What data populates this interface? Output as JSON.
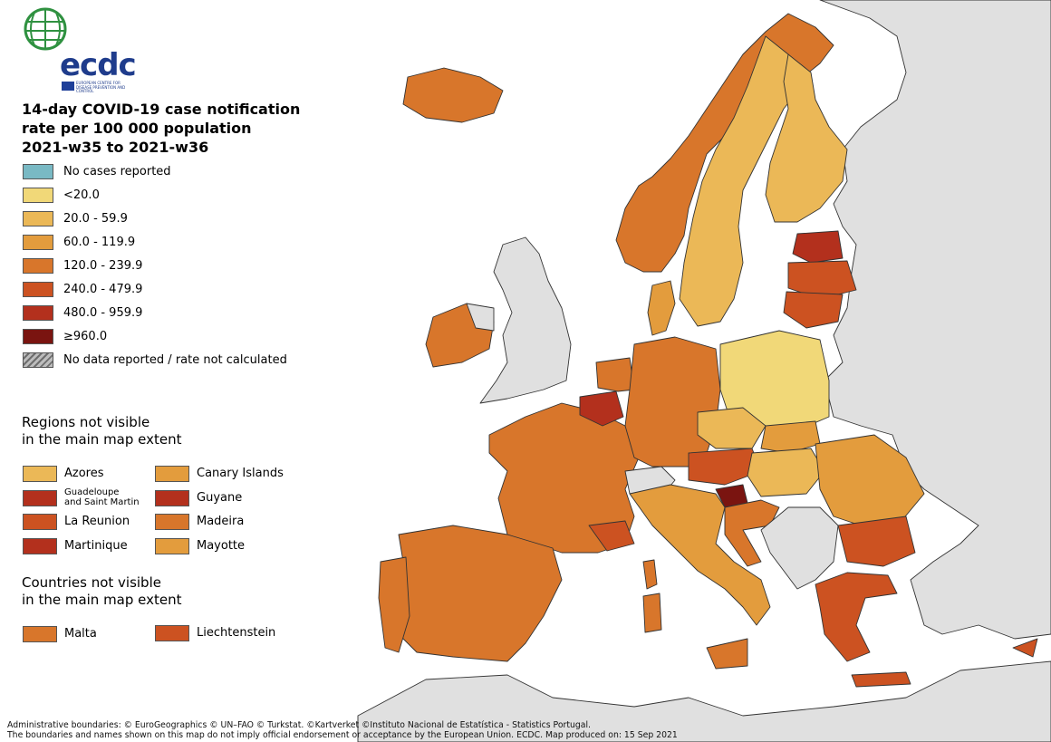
{
  "brand": {
    "logo_text": "ecdc",
    "logo_subtitle": "EUROPEAN CENTRE FOR DISEASE PREVENTION AND CONTROL"
  },
  "title": {
    "line1": "14-day COVID-19 case notification",
    "line2": "rate per 100 000 population",
    "line3": "2021-w35 to 2021-w36"
  },
  "legend": {
    "items": [
      {
        "label": "No cases reported",
        "color": "#79b9c4"
      },
      {
        "label": "<20.0",
        "color": "#f1d878"
      },
      {
        "label": "20.0 - 59.9",
        "color": "#ebb857"
      },
      {
        "label": "60.0 - 119.9",
        "color": "#e39c3d"
      },
      {
        "label": "120.0 - 239.9",
        "color": "#d8762b"
      },
      {
        "label": "240.0 - 479.9",
        "color": "#cc5221"
      },
      {
        "label": "480.0 - 959.9",
        "color": "#b3301d"
      },
      {
        "label": "≥960.0",
        "color": "#7a1410"
      },
      {
        "label": "No data reported / rate not calculated",
        "color": "hatched-grey"
      }
    ]
  },
  "regions_not_visible": {
    "heading_line1": "Regions not visible",
    "heading_line2": "in the main map extent",
    "left": [
      {
        "label": "Azores",
        "color": "#ebb857"
      },
      {
        "label_line1": "Guadeloupe",
        "label_line2": "and Saint Martin",
        "color": "#b3301d"
      },
      {
        "label": "La Reunion",
        "color": "#cc5221"
      },
      {
        "label": "Martinique",
        "color": "#b3301d"
      }
    ],
    "right": [
      {
        "label": "Canary Islands",
        "color": "#e39c3d"
      },
      {
        "label": "Guyane",
        "color": "#b3301d"
      },
      {
        "label": "Madeira",
        "color": "#d8762b"
      },
      {
        "label": "Mayotte",
        "color": "#e39c3d"
      }
    ]
  },
  "countries_not_visible": {
    "heading_line1": "Countries not visible",
    "heading_line2": "in the main map extent",
    "items": [
      {
        "label": "Malta",
        "color": "#d8762b"
      },
      {
        "label": "Liechtenstein",
        "color": "#cc5221"
      }
    ]
  },
  "footer": {
    "line1": "Administrative boundaries: © EuroGeographics © UN–FAO © Turkstat. ©Kartverket ©Instituto Nacional de Estatística - Statistics Portugal.",
    "line2": "The boundaries and names shown on this map do not imply official endorsement or acceptance by the European Union. ECDC. Map produced on: 15 Sep 2021"
  },
  "map_colors": {
    "non_eu": "#e0e0e0",
    "sea": "#ffffff",
    "border": "#333333"
  }
}
